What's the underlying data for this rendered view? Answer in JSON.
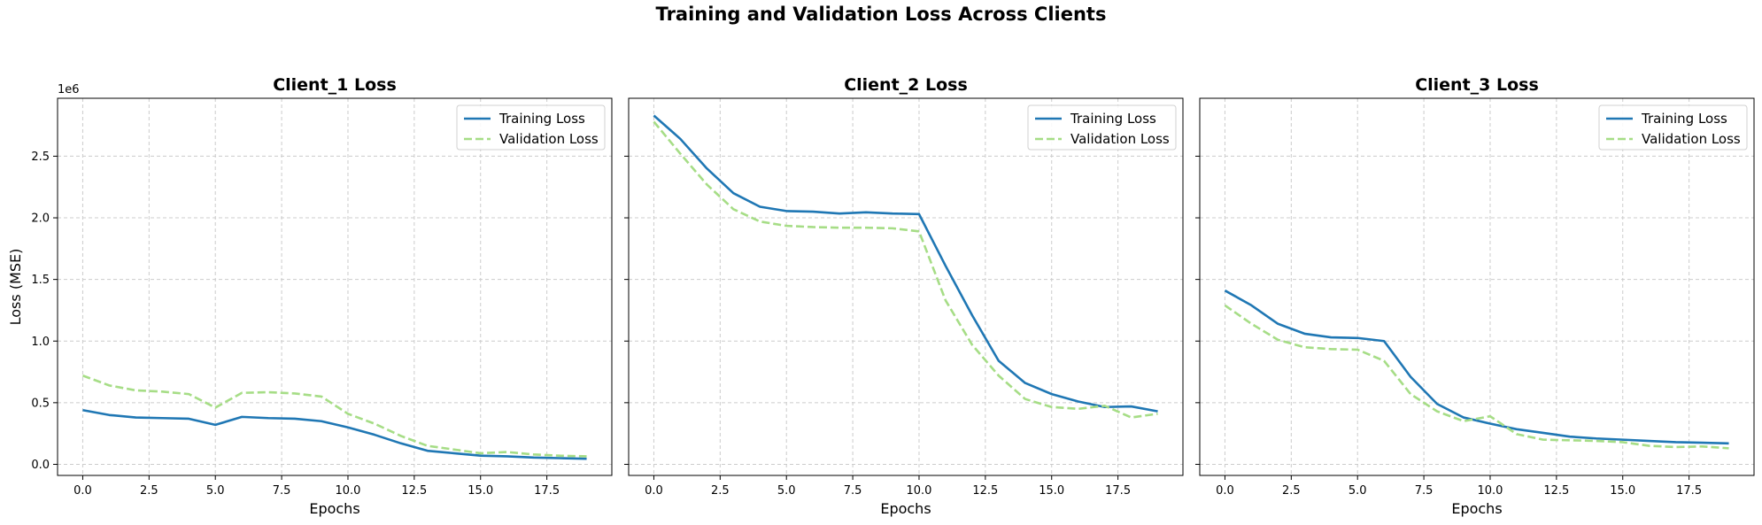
{
  "figure": {
    "suptitle": "Training and Validation Loss Across Clients",
    "ylabel": "Loss (MSE)",
    "y_offset_label": "1e6"
  },
  "colors": {
    "training": "#1f77b4",
    "validation": "#a6dd86",
    "grid": "#cccccc"
  },
  "chart_data": [
    {
      "type": "line",
      "title": "Client_1 Loss",
      "xlabel": "Epochs",
      "ylabel": "Loss (MSE)",
      "y_scale_note": "1e6",
      "xlim": [
        -0.95,
        19.95
      ],
      "ylim": [
        -0.09,
        2.97
      ],
      "x_ticks": [
        "0.0",
        "2.5",
        "5.0",
        "7.5",
        "10.0",
        "12.5",
        "15.0",
        "17.5"
      ],
      "y_ticks": [
        "0.0",
        "0.5",
        "1.0",
        "1.5",
        "2.0",
        "2.5"
      ],
      "grid": true,
      "legend": "top-right",
      "x": [
        0,
        1,
        2,
        3,
        4,
        5,
        6,
        7,
        8,
        9,
        10,
        11,
        12,
        13,
        14,
        15,
        16,
        17,
        18,
        19
      ],
      "series": [
        {
          "name": "Training Loss",
          "style": "solid",
          "values": [
            0.44,
            0.4,
            0.38,
            0.375,
            0.37,
            0.32,
            0.385,
            0.375,
            0.37,
            0.35,
            0.3,
            0.24,
            0.17,
            0.11,
            0.09,
            0.07,
            0.065,
            0.055,
            0.05,
            0.045
          ]
        },
        {
          "name": "Validation Loss",
          "style": "dashed",
          "values": [
            0.72,
            0.64,
            0.6,
            0.59,
            0.57,
            0.46,
            0.58,
            0.585,
            0.575,
            0.55,
            0.41,
            0.33,
            0.23,
            0.15,
            0.12,
            0.09,
            0.1,
            0.08,
            0.07,
            0.065
          ]
        }
      ]
    },
    {
      "type": "line",
      "title": "Client_2 Loss",
      "xlabel": "Epochs",
      "xlim": [
        -0.95,
        19.95
      ],
      "ylim": [
        -0.09,
        2.97
      ],
      "x_ticks": [
        "0.0",
        "2.5",
        "5.0",
        "7.5",
        "10.0",
        "12.5",
        "15.0",
        "17.5"
      ],
      "grid": true,
      "legend": "top-right",
      "x": [
        0,
        1,
        2,
        3,
        4,
        5,
        6,
        7,
        8,
        9,
        10,
        11,
        12,
        13,
        14,
        15,
        16,
        17,
        18,
        19
      ],
      "series": [
        {
          "name": "Training Loss",
          "style": "solid",
          "values": [
            2.83,
            2.64,
            2.4,
            2.2,
            2.09,
            2.055,
            2.05,
            2.035,
            2.045,
            2.035,
            2.03,
            1.61,
            1.21,
            0.84,
            0.66,
            0.57,
            0.51,
            0.465,
            0.47,
            0.43
          ]
        },
        {
          "name": "Validation Loss",
          "style": "dashed",
          "values": [
            2.78,
            2.52,
            2.27,
            2.07,
            1.97,
            1.935,
            1.925,
            1.92,
            1.92,
            1.915,
            1.89,
            1.33,
            0.97,
            0.72,
            0.53,
            0.465,
            0.45,
            0.475,
            0.38,
            0.41
          ]
        }
      ]
    },
    {
      "type": "line",
      "title": "Client_3 Loss",
      "xlabel": "Epochs",
      "xlim": [
        -0.95,
        19.95
      ],
      "ylim": [
        -0.09,
        2.97
      ],
      "x_ticks": [
        "0.0",
        "2.5",
        "5.0",
        "7.5",
        "10.0",
        "12.5",
        "15.0",
        "17.5"
      ],
      "grid": true,
      "legend": "top-right",
      "x": [
        0,
        1,
        2,
        3,
        4,
        5,
        6,
        7,
        8,
        9,
        10,
        11,
        12,
        13,
        14,
        15,
        16,
        17,
        18,
        19
      ],
      "series": [
        {
          "name": "Training Loss",
          "style": "solid",
          "values": [
            1.41,
            1.29,
            1.14,
            1.06,
            1.03,
            1.025,
            1.0,
            0.71,
            0.49,
            0.38,
            0.33,
            0.285,
            0.255,
            0.225,
            0.21,
            0.2,
            0.19,
            0.18,
            0.175,
            0.17
          ]
        },
        {
          "name": "Validation Loss",
          "style": "dashed",
          "values": [
            1.29,
            1.14,
            1.01,
            0.95,
            0.935,
            0.93,
            0.84,
            0.57,
            0.43,
            0.35,
            0.39,
            0.245,
            0.2,
            0.195,
            0.19,
            0.18,
            0.15,
            0.14,
            0.145,
            0.13
          ]
        }
      ]
    }
  ]
}
